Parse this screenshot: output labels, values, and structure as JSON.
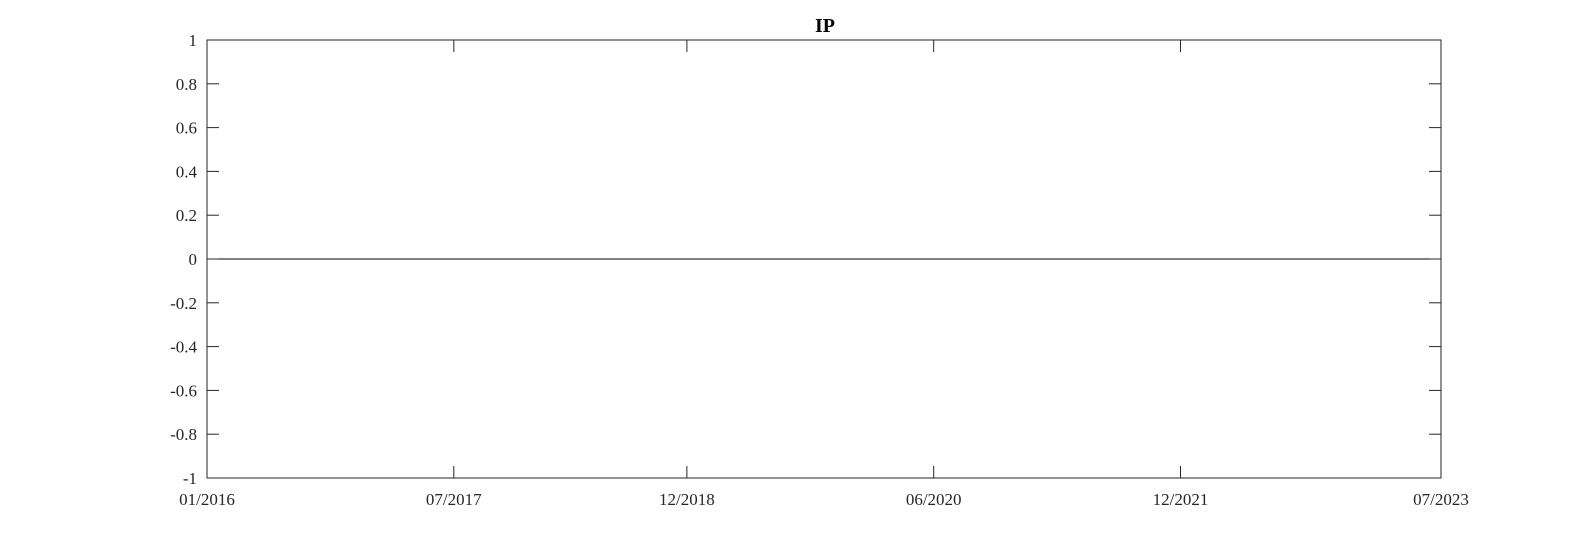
{
  "chart_data": {
    "type": "line",
    "title": "IP",
    "xlabel": "",
    "ylabel": "",
    "x_ticks": [
      "01/2016",
      "07/2017",
      "12/2018",
      "06/2020",
      "12/2021",
      "07/2023"
    ],
    "y_ticks": [
      "1",
      "0.8",
      "0.6",
      "0.4",
      "0.2",
      "0",
      "-0.2",
      "-0.4",
      "-0.6",
      "-0.8",
      "-1"
    ],
    "xlim": [
      "01/2016",
      "07/2023"
    ],
    "ylim": [
      -1,
      1
    ],
    "grid": false,
    "legend": "none",
    "series": [
      {
        "x": [
          "01/2016",
          "07/2023"
        ],
        "values": [
          0,
          0
        ],
        "color": "#000000"
      }
    ]
  }
}
